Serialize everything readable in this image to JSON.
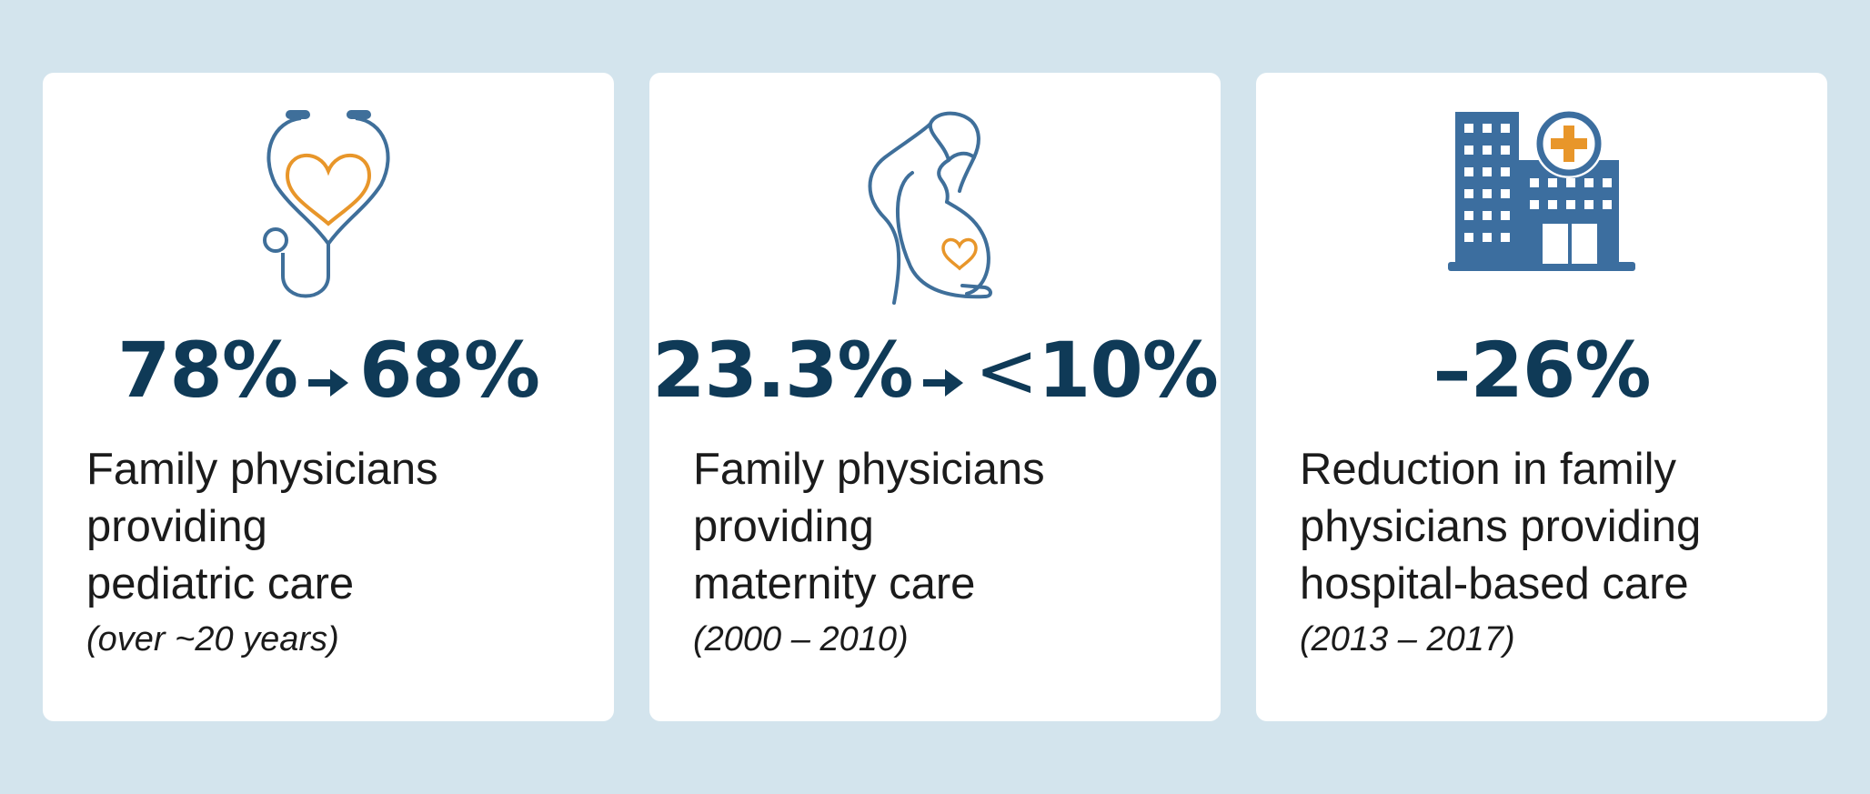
{
  "colors": {
    "background": "#d3e4ed",
    "card": "#ffffff",
    "stat": "#0f3a57",
    "icon_blue": "#3f6f9a",
    "icon_orange": "#e8962a",
    "hospital_blue": "#3c6e9f"
  },
  "cards": [
    {
      "icon": "stethoscope-heart-icon",
      "stat_from": "78%",
      "stat_to": "68%",
      "desc_lines": [
        "Family physicians",
        "providing",
        "pediatric care"
      ],
      "note": "(over ~20 years)"
    },
    {
      "icon": "pregnant-woman-heart-icon",
      "stat_from": "23.3%",
      "stat_to_prefix": "<",
      "stat_to": "10%",
      "desc_lines": [
        "Family physicians",
        "providing",
        "maternity care"
      ],
      "note": "(2000 – 2010)"
    },
    {
      "icon": "hospital-building-icon",
      "stat": "–26%",
      "desc_lines": [
        "Reduction in family",
        "physicians providing",
        "hospital-based care"
      ],
      "note": "(2013 – 2017)"
    }
  ]
}
